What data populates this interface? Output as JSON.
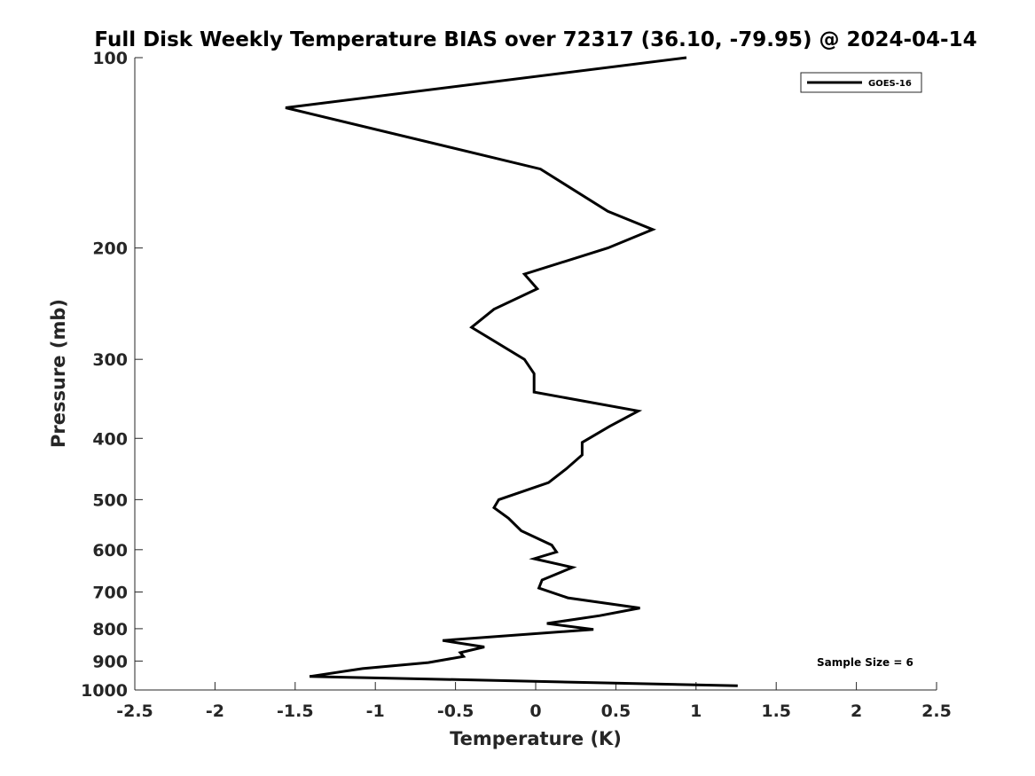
{
  "chart_data": {
    "type": "line",
    "title": "Full Disk Weekly Temperature BIAS over 72317 (36.10, -79.95) @ 2024-04-14",
    "xlabel": "Temperature (K)",
    "ylabel": "Pressure (mb)",
    "xlim": [
      -2.5,
      2.5
    ],
    "ylim": [
      1000,
      100
    ],
    "y_scale": "log",
    "y_reversed": true,
    "x_ticks": [
      -2.5,
      -2,
      -1.5,
      -1,
      -0.5,
      0,
      0.5,
      1,
      1.5,
      2,
      2.5
    ],
    "x_tick_labels": [
      "-2.5",
      "-2",
      "-1.5",
      "-1",
      "-0.5",
      "0",
      "0.5",
      "1",
      "1.5",
      "2",
      "2.5"
    ],
    "y_ticks": [
      100,
      200,
      300,
      400,
      500,
      600,
      700,
      800,
      900,
      1000
    ],
    "y_tick_labels": [
      "100",
      "200",
      "300",
      "400",
      "500",
      "600",
      "700",
      "800",
      "900",
      "1000"
    ],
    "grid": false,
    "legend_position": "top-right",
    "annotation": "Sample Size = 6",
    "series": [
      {
        "name": "GOES-16",
        "color": "#000000",
        "points": [
          [
            0.94,
            100
          ],
          [
            -1.56,
            120
          ],
          [
            0.03,
            150
          ],
          [
            0.45,
            175
          ],
          [
            0.73,
            187
          ],
          [
            0.45,
            200
          ],
          [
            -0.07,
            220
          ],
          [
            0.01,
            232
          ],
          [
            -0.26,
            250
          ],
          [
            -0.4,
            267
          ],
          [
            -0.07,
            300
          ],
          [
            -0.01,
            316
          ],
          [
            -0.01,
            338
          ],
          [
            0.64,
            362
          ],
          [
            0.46,
            383
          ],
          [
            0.29,
            406
          ],
          [
            0.29,
            425
          ],
          [
            0.19,
            447
          ],
          [
            0.08,
            470
          ],
          [
            -0.23,
            500
          ],
          [
            -0.26,
            515
          ],
          [
            -0.17,
            535
          ],
          [
            -0.09,
            560
          ],
          [
            0.1,
            590
          ],
          [
            0.13,
            605
          ],
          [
            -0.01,
            620
          ],
          [
            0.23,
            640
          ],
          [
            0.04,
            670
          ],
          [
            0.02,
            690
          ],
          [
            0.2,
            715
          ],
          [
            0.65,
            742
          ],
          [
            0.4,
            763
          ],
          [
            0.07,
            785
          ],
          [
            0.36,
            802
          ],
          [
            -0.58,
            835
          ],
          [
            -0.32,
            855
          ],
          [
            -0.47,
            873
          ],
          [
            -0.45,
            885
          ],
          [
            -0.67,
            905
          ],
          [
            -1.08,
            925
          ],
          [
            -1.41,
            952
          ],
          [
            -0.5,
            963
          ],
          [
            1.26,
            985
          ]
        ]
      }
    ]
  }
}
